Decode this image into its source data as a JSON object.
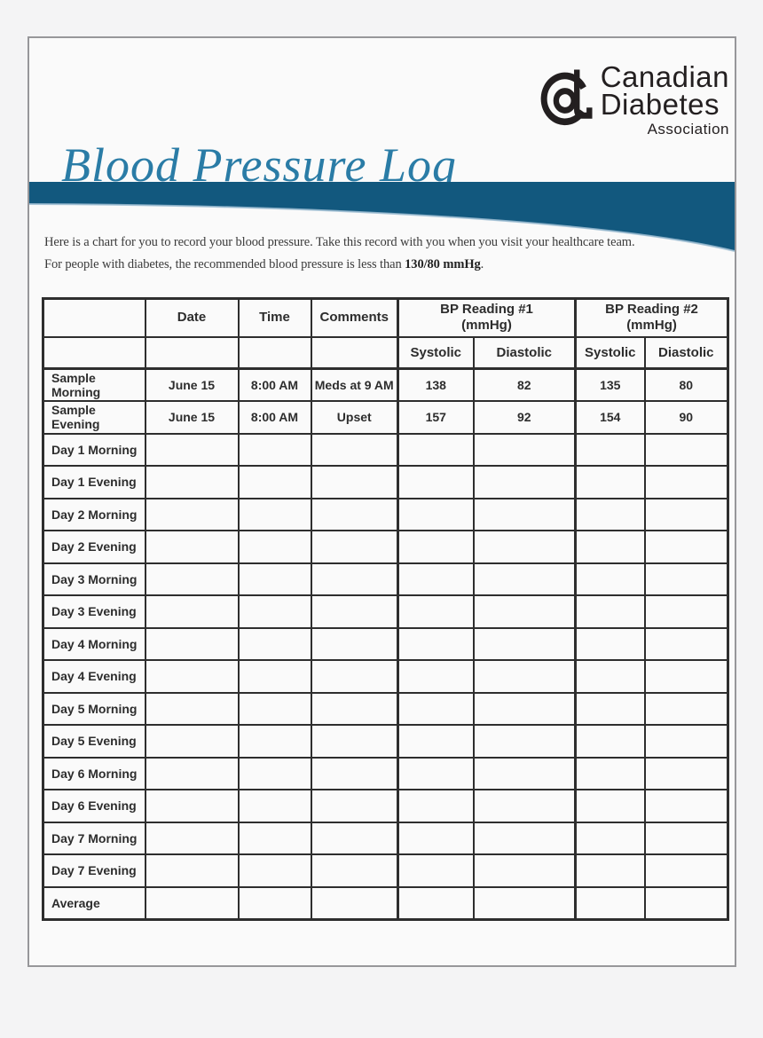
{
  "header": {
    "title": "Blood Pressure Log",
    "logo": {
      "mark": "cda-d-mark-icon",
      "line1": "Canadian",
      "line2": "Diabetes",
      "line3": "Association"
    }
  },
  "intro": {
    "line1": "Here is a chart for you to record your blood pressure. Take this record with you when you visit your healthcare team.",
    "line2_prefix": "For people with diabetes, the recommended blood pressure is less than ",
    "line2_bold": "130/80 mmHg",
    "line2_suffix": "."
  },
  "table": {
    "header_row1": {
      "col1": "",
      "date": "Date",
      "time": "Time",
      "comments": "Comments",
      "bp1_line1": "BP Reading #1",
      "bp1_line2": "(mmHg)",
      "bp2_line1": "BP Reading #2",
      "bp2_line2": "(mmHg)"
    },
    "header_row2": {
      "col1": "",
      "col2": "",
      "col3": "",
      "col4": "",
      "bp1_systolic": "Systolic",
      "bp1_diastolic": "Diastolic",
      "bp2_systolic": "Systolic",
      "bp2_diastolic": "Diastolic"
    },
    "rows": [
      {
        "label": "Sample Morning",
        "date": "June 15",
        "time": "8:00 AM",
        "comments": "Meds at 9 AM",
        "bp1_systolic": "138",
        "bp1_diastolic": "82",
        "bp2_systolic": "135",
        "bp2_diastolic": "80"
      },
      {
        "label": "Sample Evening",
        "date": "June 15",
        "time": "8:00 AM",
        "comments": "Upset",
        "bp1_systolic": "157",
        "bp1_diastolic": "92",
        "bp2_systolic": "154",
        "bp2_diastolic": "90"
      },
      {
        "label": "Day 1 Morning",
        "date": "",
        "time": "",
        "comments": "",
        "bp1_systolic": "",
        "bp1_diastolic": "",
        "bp2_systolic": "",
        "bp2_diastolic": ""
      },
      {
        "label": "Day 1 Evening",
        "date": "",
        "time": "",
        "comments": "",
        "bp1_systolic": "",
        "bp1_diastolic": "",
        "bp2_systolic": "",
        "bp2_diastolic": ""
      },
      {
        "label": "Day 2 Morning",
        "date": "",
        "time": "",
        "comments": "",
        "bp1_systolic": "",
        "bp1_diastolic": "",
        "bp2_systolic": "",
        "bp2_diastolic": ""
      },
      {
        "label": "Day 2 Evening",
        "date": "",
        "time": "",
        "comments": "",
        "bp1_systolic": "",
        "bp1_diastolic": "",
        "bp2_systolic": "",
        "bp2_diastolic": ""
      },
      {
        "label": "Day 3 Morning",
        "date": "",
        "time": "",
        "comments": "",
        "bp1_systolic": "",
        "bp1_diastolic": "",
        "bp2_systolic": "",
        "bp2_diastolic": ""
      },
      {
        "label": "Day 3 Evening",
        "date": "",
        "time": "",
        "comments": "",
        "bp1_systolic": "",
        "bp1_diastolic": "",
        "bp2_systolic": "",
        "bp2_diastolic": ""
      },
      {
        "label": "Day 4 Morning",
        "date": "",
        "time": "",
        "comments": "",
        "bp1_systolic": "",
        "bp1_diastolic": "",
        "bp2_systolic": "",
        "bp2_diastolic": ""
      },
      {
        "label": "Day 4 Evening",
        "date": "",
        "time": "",
        "comments": "",
        "bp1_systolic": "",
        "bp1_diastolic": "",
        "bp2_systolic": "",
        "bp2_diastolic": ""
      },
      {
        "label": "Day 5 Morning",
        "date": "",
        "time": "",
        "comments": "",
        "bp1_systolic": "",
        "bp1_diastolic": "",
        "bp2_systolic": "",
        "bp2_diastolic": ""
      },
      {
        "label": "Day 5 Evening",
        "date": "",
        "time": "",
        "comments": "",
        "bp1_systolic": "",
        "bp1_diastolic": "",
        "bp2_systolic": "",
        "bp2_diastolic": ""
      },
      {
        "label": "Day 6 Morning",
        "date": "",
        "time": "",
        "comments": "",
        "bp1_systolic": "",
        "bp1_diastolic": "",
        "bp2_systolic": "",
        "bp2_diastolic": ""
      },
      {
        "label": "Day 6 Evening",
        "date": "",
        "time": "",
        "comments": "",
        "bp1_systolic": "",
        "bp1_diastolic": "",
        "bp2_systolic": "",
        "bp2_diastolic": ""
      },
      {
        "label": "Day 7 Morning",
        "date": "",
        "time": "",
        "comments": "",
        "bp1_systolic": "",
        "bp1_diastolic": "",
        "bp2_systolic": "",
        "bp2_diastolic": ""
      },
      {
        "label": "Day 7 Evening",
        "date": "",
        "time": "",
        "comments": "",
        "bp1_systolic": "",
        "bp1_diastolic": "",
        "bp2_systolic": "",
        "bp2_diastolic": ""
      },
      {
        "label": "Average",
        "date": "",
        "time": "",
        "comments": "",
        "bp1_systolic": "",
        "bp1_diastolic": "",
        "bp2_systolic": "",
        "bp2_diastolic": ""
      }
    ]
  },
  "colors": {
    "wave_blue": "#12587e",
    "wave_highlight": "#9dbdd2",
    "title_teal": "#2a7ca6",
    "logo_black": "#231f20",
    "table_border": "#2e2e2e",
    "page_bg": "#f4f4f5",
    "doc_bg": "#fafafa"
  }
}
